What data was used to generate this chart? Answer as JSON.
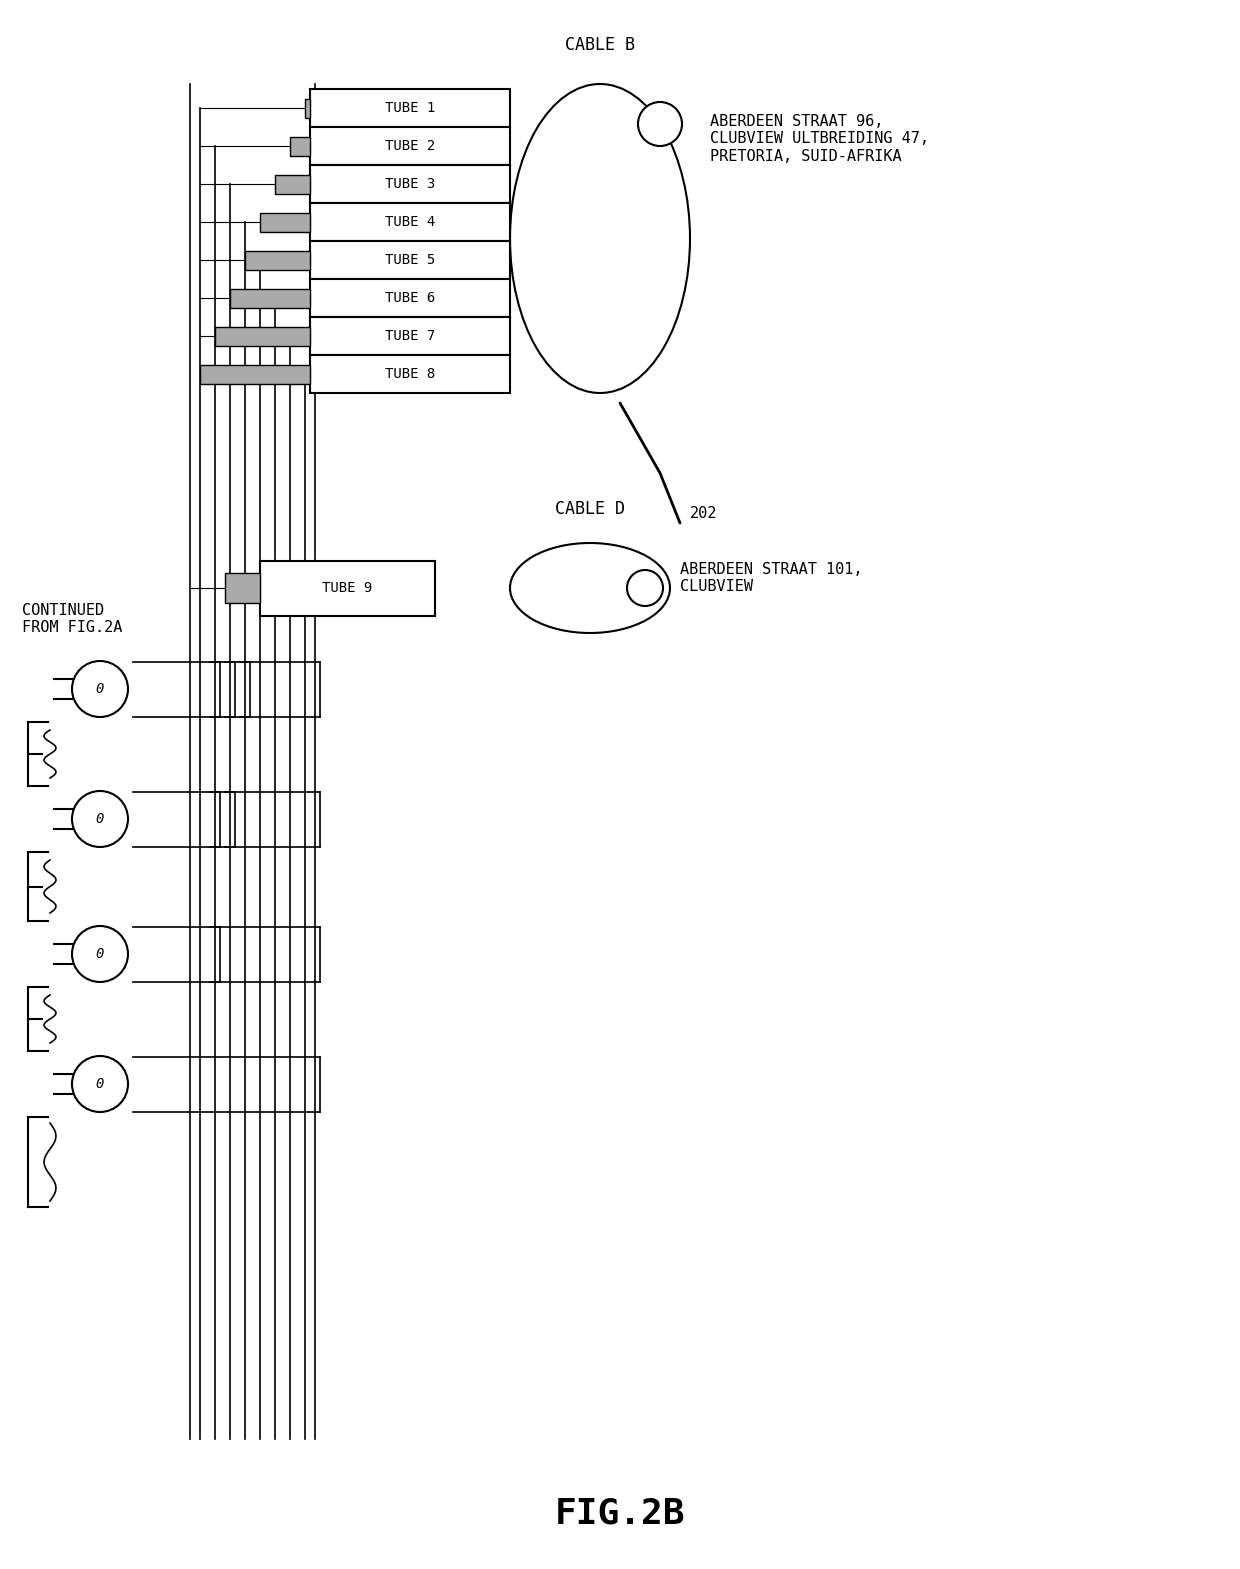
{
  "title": "FIG.2B",
  "cable_b_label": "CABLE B",
  "cable_d_label": "CABLE D",
  "cable_b_address": "ABERDEEN STRAAT 96,\nCLUBVIEW ULTBREIDING 47,\nPRETORIA, SUID-AFRIKA",
  "cable_d_address": "ABERDEEN STRAAT 101,\nCLUBVIEW",
  "tubes_b": [
    "TUBE 1",
    "TUBE 2",
    "TUBE 3",
    "TUBE 4",
    "TUBE 5",
    "TUBE 6",
    "TUBE 7",
    "TUBE 8"
  ],
  "tubes_d": [
    "TUBE 9"
  ],
  "label_202": "202",
  "continued_label": "CONTINUED\nFROM FIG.2A",
  "bg_color": "#ffffff",
  "line_color": "#000000",
  "font_size": 9,
  "title_font_size": 22
}
